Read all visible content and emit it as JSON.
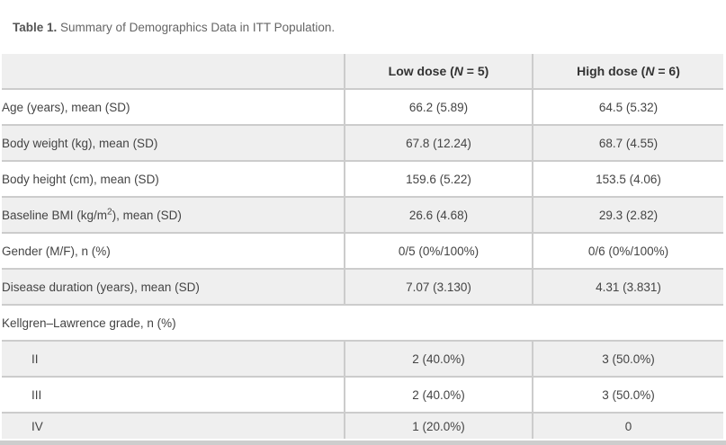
{
  "caption": {
    "label": "Table 1.",
    "text": "Summary of Demographics Data in ITT Population."
  },
  "table": {
    "columns": {
      "low": {
        "pre": "Low dose (",
        "n": "N",
        "post": " = 5)"
      },
      "high": {
        "pre": "High dose (",
        "n": "N",
        "post": " = 6)"
      }
    },
    "rows": [
      {
        "label": "Age (years), mean (SD)",
        "values": [
          "66.2 (5.89)",
          "64.5 (5.32)"
        ]
      },
      {
        "label": "Body weight (kg), mean (SD)",
        "values": [
          "67.8 (12.24)",
          "68.7 (4.55)"
        ]
      },
      {
        "label": "Body height (cm), mean (SD)",
        "values": [
          "159.6 (5.22)",
          "153.5 (4.06)"
        ]
      },
      {
        "label_parts": {
          "pre": "Baseline BMI (kg/m",
          "sup": "2",
          "post": "), mean (SD)"
        },
        "values": [
          "26.6 (4.68)",
          "29.3 (2.82)"
        ]
      },
      {
        "label": "Gender (M/F), n (%)",
        "values": [
          "0/5 (0%/100%)",
          "0/6 (0%/100%)"
        ]
      },
      {
        "label": "Disease duration (years), mean (SD)",
        "values": [
          "7.07 (3.130)",
          "4.31 (3.831)"
        ]
      },
      {
        "label": "Kellgren–Lawrence grade, n (%)",
        "span_all": true
      },
      {
        "label": "II",
        "indent": true,
        "values": [
          "2 (40.0%)",
          "3 (50.0%)"
        ]
      },
      {
        "label": "III",
        "indent": true,
        "values": [
          "2 (40.0%)",
          "3 (50.0%)"
        ]
      },
      {
        "label": "IV",
        "indent": true,
        "values": [
          "1 (20.0%)",
          "0"
        ]
      }
    ]
  },
  "colors": {
    "alt_row_bg": "#efefef",
    "border": "#cccccc",
    "scrollbar": "#cdcdcd",
    "text": "#444444",
    "header_text": "#333333",
    "caption_text": "#666666",
    "caption_label": "#555555"
  }
}
